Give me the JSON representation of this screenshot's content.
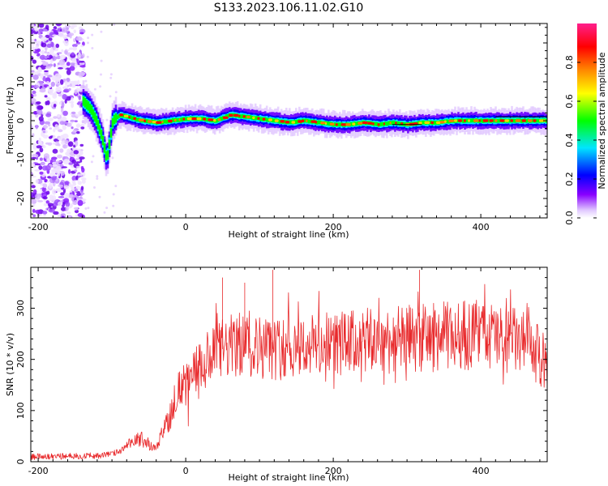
{
  "title": "S133.2023.106.11.02.G10",
  "chart_data": [
    {
      "type": "heatmap",
      "xlabel": "Height of straight line (km)",
      "ylabel": "Frequency (Hz)",
      "xlim": [
        -210,
        490
      ],
      "ylim": [
        -25,
        25
      ],
      "x_ticks": [
        -200,
        0,
        200,
        400
      ],
      "y_ticks": [
        -20,
        -10,
        0,
        10,
        20
      ],
      "colorbar": {
        "label": "Normalized spectral amplitude",
        "range": [
          0.0,
          1.0
        ],
        "ticks": [
          0.0,
          0.2,
          0.4,
          0.6,
          0.8
        ],
        "tick_labels": [
          "0.0",
          "0.2",
          "0.4",
          "0.6",
          "0.8"
        ],
        "colors": [
          "#ffffff",
          "#d9a6ff",
          "#8800ff",
          "#0000ff",
          "#00e5ff",
          "#00ff00",
          "#ffff00",
          "#ff8800",
          "#ff0000",
          "#ff1f8c"
        ]
      },
      "noise_region_x": [
        -210,
        -138
      ],
      "ridge": {
        "x": [
          -140,
          -130,
          -122,
          -115,
          -108,
          -100,
          -90,
          -80,
          -60,
          -40,
          -20,
          0,
          20,
          40,
          60,
          80,
          100,
          120,
          140,
          160,
          180,
          200,
          220,
          240,
          260,
          280,
          300,
          320,
          340,
          360,
          380,
          400,
          420,
          440,
          460,
          490
        ],
        "y": [
          5,
          3,
          0,
          -4,
          -10,
          0,
          1.5,
          1,
          0,
          -0.5,
          0,
          0.5,
          0.5,
          0,
          1.5,
          1,
          0.5,
          0,
          -0.5,
          0,
          -0.5,
          -1,
          -1,
          -0.5,
          -1,
          -0.5,
          -1,
          -0.5,
          -0.5,
          0,
          0,
          0,
          0,
          0,
          0,
          0
        ]
      }
    },
    {
      "type": "line",
      "xlabel": "Height of straight line (km)",
      "ylabel": "SNR (10 * v/v)",
      "xlim": [
        -210,
        490
      ],
      "ylim": [
        0,
        380
      ],
      "x_ticks": [
        -200,
        0,
        200,
        400
      ],
      "y_ticks": [
        0,
        100,
        200,
        300
      ],
      "color": "#e8292b",
      "series": [
        {
          "x": [
            -210,
            -180,
            -150,
            -120,
            -100,
            -90,
            -80,
            -70,
            -60,
            -50,
            -40,
            -30,
            -20,
            -10,
            0,
            10,
            20,
            30,
            40,
            50,
            60,
            80,
            100,
            120,
            150,
            200,
            250,
            300,
            350,
            400,
            430,
            450,
            470,
            490
          ],
          "y": [
            10,
            10,
            11,
            12,
            15,
            20,
            30,
            40,
            45,
            35,
            25,
            60,
            100,
            140,
            150,
            170,
            185,
            190,
            210,
            220,
            225,
            230,
            225,
            220,
            225,
            230,
            235,
            240,
            245,
            250,
            240,
            235,
            220,
            190
          ]
        }
      ],
      "peaks": [
        {
          "x": 50,
          "y": 360
        },
        {
          "x": 80,
          "y": 350
        },
        {
          "x": 118,
          "y": 375
        },
        {
          "x": 317,
          "y": 375
        }
      ]
    }
  ]
}
